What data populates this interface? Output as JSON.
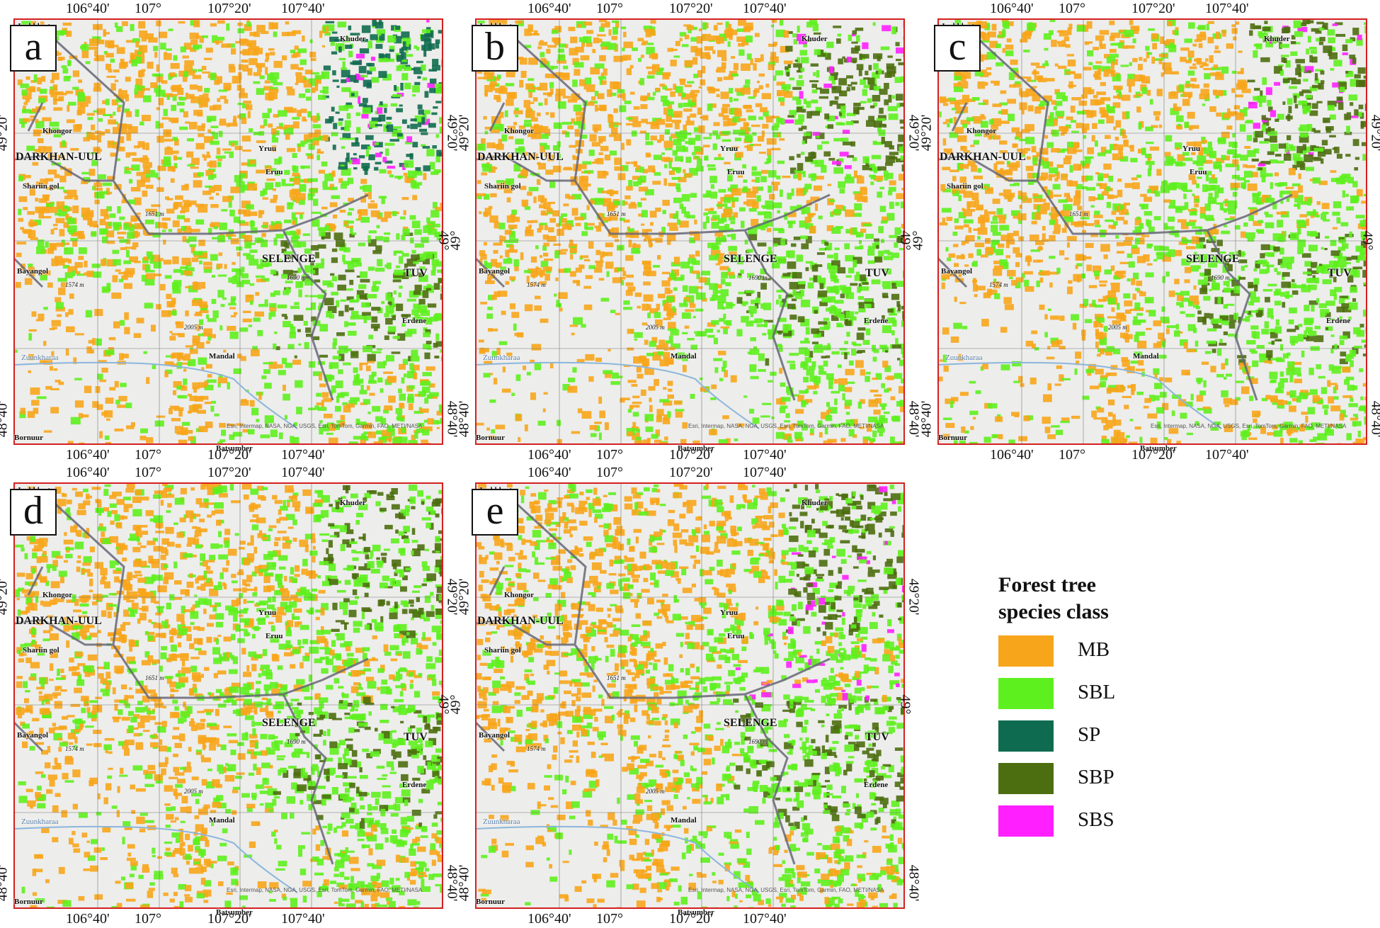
{
  "panels": [
    {
      "letter": "a",
      "top_lon_labels": [
        "106°40'",
        "107°",
        "107°20'",
        "107°40'"
      ],
      "bottom_lon_labels": [
        "106°40'",
        "107°",
        "107°20'",
        "107°40'"
      ],
      "lat_labels": [
        "49°20'",
        "49°",
        "48°40'"
      ]
    },
    {
      "letter": "b",
      "top_lon_labels": [
        "106°40'",
        "107°",
        "107°20'",
        "107°40'"
      ],
      "bottom_lon_labels": [
        "106°40'",
        "107°",
        "107°20'",
        "107°40'"
      ],
      "lat_labels": [
        "49°20'",
        "49°",
        "48°40'"
      ]
    },
    {
      "letter": "c",
      "top_lon_labels": [
        "106°40'",
        "107°",
        "107°20'",
        "107°40'"
      ],
      "bottom_lon_labels": [
        "106°40'",
        "107°",
        "107°20'",
        "107°40'"
      ],
      "lat_labels": [
        "49°20'",
        "49°",
        "48°40'"
      ]
    },
    {
      "letter": "d",
      "top_lon_labels": [
        "106°40'",
        "107°",
        "107°20'",
        "107°40'"
      ],
      "bottom_lon_labels": [
        "106°40'",
        "107°",
        "107°20'",
        "107°40'"
      ],
      "lat_labels": [
        "49°20'",
        "49°",
        "48°40'"
      ]
    },
    {
      "letter": "e",
      "top_lon_labels": [
        "106°40'",
        "107°",
        "107°20'",
        "107°40'"
      ],
      "bottom_lon_labels": [
        "106°40'",
        "107°",
        "107°20'",
        "107°40'"
      ],
      "lat_labels": [
        "49°20'",
        "49°",
        "48°40'"
      ]
    }
  ],
  "places": {
    "javkhlant": "Javkhlant",
    "khuder": "Khuder",
    "khongor": "Khongor",
    "darkhan_uul": "DARKHAN-UUL",
    "yruu": "Yruu",
    "eruu": "Eruu",
    "shariin_gol": "Shariin gol",
    "elev_1651": "1651 m",
    "selenge": "SELENGE",
    "bayangol": "Bayangol",
    "elev_1574": "1574 m",
    "elev_1690": "1690 m",
    "tuv": "TUV",
    "erdene": "Erdene",
    "elev_2005": "2005 m",
    "zuunkharaa": "Zuunkharaa",
    "mandal": "Mandal",
    "bornuur": "Bornuur",
    "batsumber": "Batsumber"
  },
  "attribution": "Esri, Intermap, NASA, NGA, USGS, Esri, TomTom, Garmin, FAO, METI/NASA",
  "legend": {
    "title_line1": "Forest tree",
    "title_line2": "species class",
    "items": [
      {
        "label": "MB",
        "color": "#f7a51b"
      },
      {
        "label": "SBL",
        "color": "#5ef01e"
      },
      {
        "label": "SP",
        "color": "#0f6b4f"
      },
      {
        "label": "SBP",
        "color": "#4d6e10"
      },
      {
        "label": "SBS",
        "color": "#ff1fff"
      }
    ]
  },
  "map_colors": {
    "frame": "#d42020",
    "background": "#ededeb",
    "boundary": "#666677",
    "river": "#8cb6dc"
  }
}
